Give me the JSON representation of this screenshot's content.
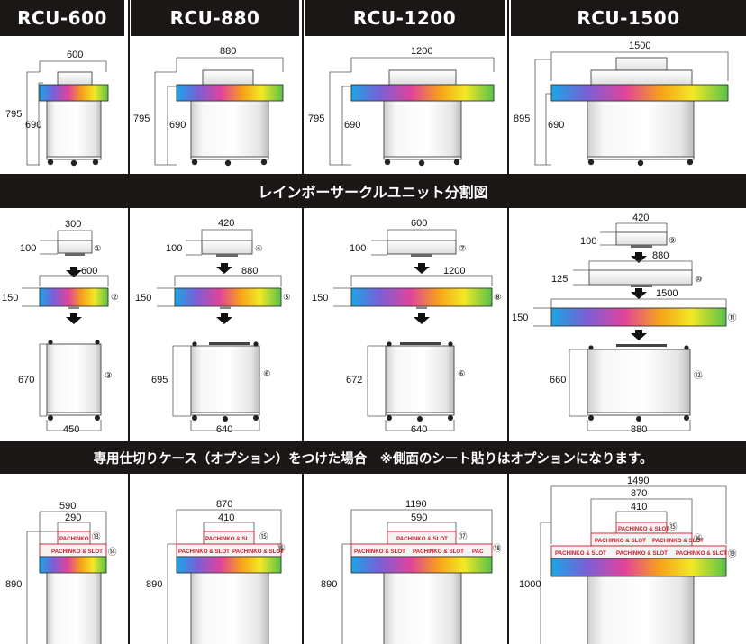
{
  "headers": {
    "rcu600": "RCU-600",
    "rcu880": "RCU-880",
    "rcu1200": "RCU-1200",
    "rcu1500": "RCU-1500"
  },
  "sections": {
    "unit_breakdown_title": "レインボーサークルユニット分割図",
    "case_option_title": "専用仕切りケース（オプション）をつけた場合　※側面のシート貼りはオプションになります。"
  },
  "top_row": {
    "rcu600": {
      "width": "600",
      "total_height": "795",
      "body_height": "690"
    },
    "rcu880": {
      "width": "880",
      "total_height": "795",
      "body_height": "690"
    },
    "rcu1200": {
      "width": "1200",
      "total_height": "795",
      "body_height": "690"
    },
    "rcu1500": {
      "width": "1500",
      "total_height": "895",
      "body_height": "690"
    }
  },
  "breakdown": {
    "rcu600": {
      "top_width": "300",
      "top_height": "100",
      "top_no": "①",
      "ring_width": "600",
      "ring_height": "150",
      "ring_no": "②",
      "body_height": "670",
      "body_width": "450",
      "body_no": "③"
    },
    "rcu880": {
      "top_width": "420",
      "top_height": "100",
      "top_no": "④",
      "ring_width": "880",
      "ring_height": "150",
      "ring_no": "⑤",
      "body_height": "695",
      "body_width": "640",
      "body_no": "⑥"
    },
    "rcu1200": {
      "top_width": "600",
      "top_height": "100",
      "top_no": "⑦",
      "ring_width": "1200",
      "ring_height": "150",
      "ring_no": "⑧",
      "body_height": "672",
      "body_width": "640",
      "body_no": "⑥"
    },
    "rcu1500": {
      "top_width": "420",
      "top_height": "100",
      "top_no": "⑨",
      "mid_width": "880",
      "mid_height": "125",
      "mid_no": "⑩",
      "ring_width": "1500",
      "ring_height": "150",
      "ring_no": "⑪",
      "body_height": "660",
      "body_width": "880",
      "body_no": "⑫"
    }
  },
  "with_case": {
    "sign_text": "PACHINKO & SLOT",
    "sign_text_short": "PACHINKO",
    "sign_text_cut1": "PACHINKO & SL",
    "sign_text_cut2": "PACHINKO & SLOT",
    "sign_text_cut3": "PAC",
    "rcu600": {
      "outer_width": "590",
      "inner_width": "290",
      "height": "890",
      "upper_no": "⑬",
      "lower_no": "⑭"
    },
    "rcu880": {
      "outer_width": "870",
      "inner_width": "410",
      "height": "890",
      "upper_no": "⑮",
      "lower_no": "⑯"
    },
    "rcu1200": {
      "outer_width": "1190",
      "inner_width": "590",
      "height": "890",
      "upper_no": "⑰",
      "lower_no": "⑱"
    },
    "rcu1500": {
      "outer_width": "1490",
      "mid_width": "870",
      "inner_width": "410",
      "height": "1000",
      "top_no": "⑮",
      "upper_no": "⑯",
      "lower_no": "⑲"
    }
  },
  "colors": {
    "header_bg": "#1a1716",
    "rainbow": [
      "#1aa6e6",
      "#7a5fd6",
      "#e0439b",
      "#f6a21a",
      "#f3e826",
      "#58c24a"
    ],
    "sign_text": "#cc1a2a"
  }
}
